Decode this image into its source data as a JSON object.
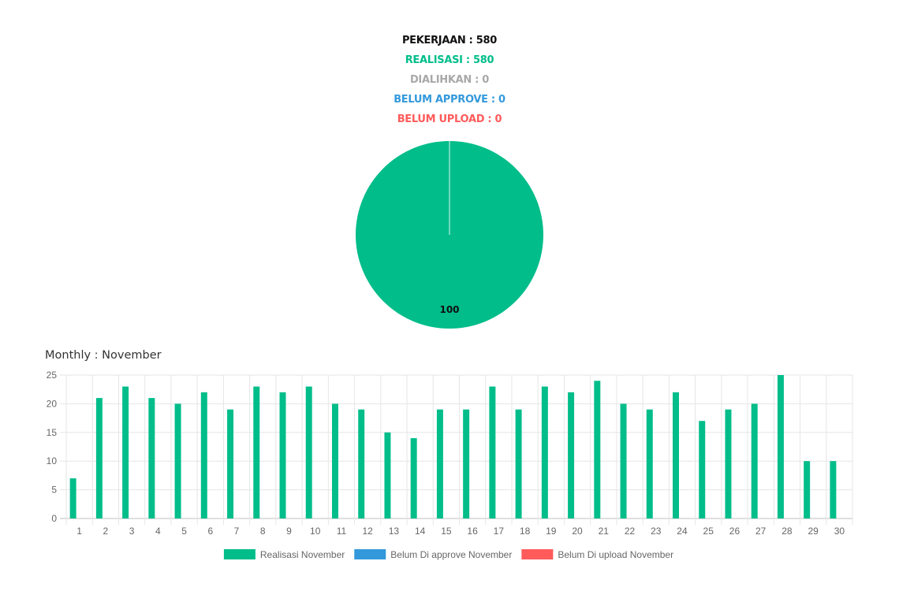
{
  "summary": {
    "pekerjaan": "PEKERJAAN : 580",
    "realisasi": "REALISASI : 580",
    "dialihkan": "DIALIHKAN : 0",
    "belum_approve": "BELUM APPROVE : 0",
    "belum_upload": "BELUM UPLOAD : 0"
  },
  "colors": {
    "realisasi": "#00bd8a",
    "dialihkan": "#a8a8a8",
    "belum_approve": "#3399db",
    "belum_upload": "#ff5b5b",
    "pekerjaan": "#111111"
  },
  "monthly_title": "Monthly : November",
  "chart_data": [
    {
      "type": "pie",
      "values": [
        100
      ],
      "colors": [
        "#00bd8a"
      ],
      "data_labels": [
        "100"
      ]
    },
    {
      "type": "bar",
      "categories": [
        "1",
        "2",
        "3",
        "4",
        "5",
        "6",
        "7",
        "8",
        "9",
        "10",
        "11",
        "12",
        "13",
        "14",
        "15",
        "16",
        "17",
        "18",
        "19",
        "20",
        "21",
        "22",
        "23",
        "24",
        "25",
        "26",
        "27",
        "28",
        "29",
        "30"
      ],
      "series": [
        {
          "name": "Realisasi November",
          "color": "#00bd8a",
          "values": [
            7,
            21,
            23,
            21,
            20,
            22,
            19,
            23,
            22,
            23,
            20,
            19,
            15,
            14,
            19,
            19,
            23,
            19,
            23,
            22,
            24,
            20,
            19,
            22,
            17,
            19,
            20,
            25,
            10,
            10
          ]
        },
        {
          "name": "Belum Di approve November",
          "color": "#3399db",
          "values": [
            0,
            0,
            0,
            0,
            0,
            0,
            0,
            0,
            0,
            0,
            0,
            0,
            0,
            0,
            0,
            0,
            0,
            0,
            0,
            0,
            0,
            0,
            0,
            0,
            0,
            0,
            0,
            0,
            0,
            0
          ]
        },
        {
          "name": "Belum Di upload November",
          "color": "#ff5b5b",
          "values": [
            0,
            0,
            0,
            0,
            0,
            0,
            0,
            0,
            0,
            0,
            0,
            0,
            0,
            0,
            0,
            0,
            0,
            0,
            0,
            0,
            0,
            0,
            0,
            0,
            0,
            0,
            0,
            0,
            0,
            0
          ]
        }
      ],
      "yticks": [
        "0",
        "5",
        "10",
        "15",
        "20",
        "25"
      ],
      "ylim": [
        0,
        25
      ],
      "grid": true,
      "legend": "bottom"
    }
  ]
}
